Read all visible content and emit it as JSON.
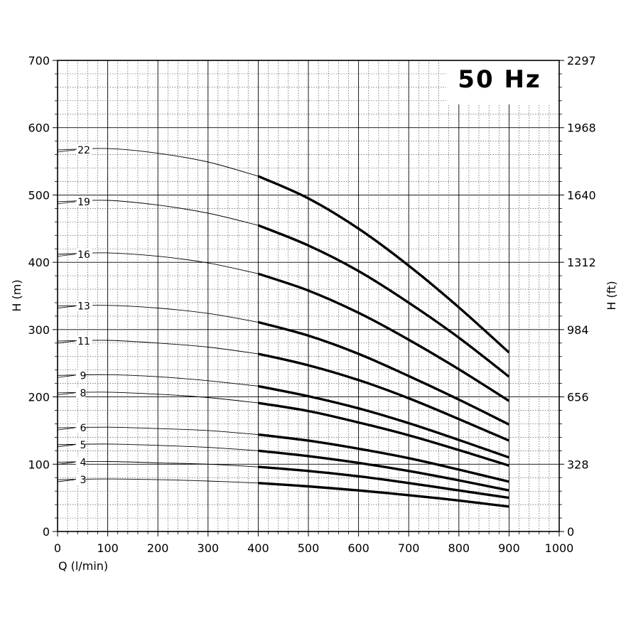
{
  "chart_data": {
    "type": "line",
    "annotation": "50 Hz",
    "xlabel": "Q (l/min)",
    "ylabel": "H (m)",
    "ylabel_right": "H (ft)",
    "xlim": [
      0,
      1000
    ],
    "ylim": [
      0,
      700
    ],
    "x_ticks": [
      "0",
      "100",
      "200",
      "300",
      "400",
      "500",
      "600",
      "700",
      "800",
      "900",
      "1000"
    ],
    "y_ticks": [
      "0",
      "100",
      "200",
      "300",
      "400",
      "500",
      "600",
      "700"
    ],
    "y_ticks_right": [
      "0",
      "328",
      "656",
      "984",
      "1312",
      "1640",
      "1968",
      "2297"
    ],
    "grid": true,
    "operating_range": [
      400,
      900
    ],
    "x": [
      0,
      100,
      200,
      300,
      400,
      500,
      600,
      700,
      800,
      900
    ],
    "series": [
      {
        "name": "22",
        "values": [
          567,
          569,
          562,
          549,
          528,
          495,
          450,
          395,
          333,
          266
        ]
      },
      {
        "name": "19",
        "values": [
          490,
          492,
          485,
          473,
          455,
          425,
          387,
          340,
          288,
          230
        ]
      },
      {
        "name": "16",
        "values": [
          412,
          414,
          409,
          399,
          383,
          358,
          325,
          285,
          241,
          194
        ]
      },
      {
        "name": "13",
        "values": [
          335,
          336,
          332,
          324,
          311,
          291,
          264,
          231,
          196,
          159
        ]
      },
      {
        "name": "11",
        "values": [
          283,
          284,
          280,
          274,
          264,
          247,
          225,
          198,
          167,
          135
        ]
      },
      {
        "name": "9",
        "values": [
          232,
          233,
          230,
          224,
          216,
          201,
          183,
          161,
          136,
          110
        ]
      },
      {
        "name": "8",
        "values": [
          206,
          207,
          204,
          199,
          191,
          179,
          162,
          143,
          121,
          98
        ]
      },
      {
        "name": "6",
        "values": [
          154,
          155,
          153,
          150,
          144,
          135,
          123,
          109,
          92,
          74
        ]
      },
      {
        "name": "5",
        "values": [
          129,
          130,
          128,
          125,
          120,
          112,
          102,
          90,
          76,
          61
        ]
      },
      {
        "name": "4",
        "values": [
          103,
          104,
          102,
          100,
          96,
          90,
          82,
          72,
          61,
          50
        ]
      },
      {
        "name": "3",
        "values": [
          77,
          78,
          77,
          75,
          72,
          67,
          61,
          54,
          46,
          37
        ]
      }
    ]
  }
}
